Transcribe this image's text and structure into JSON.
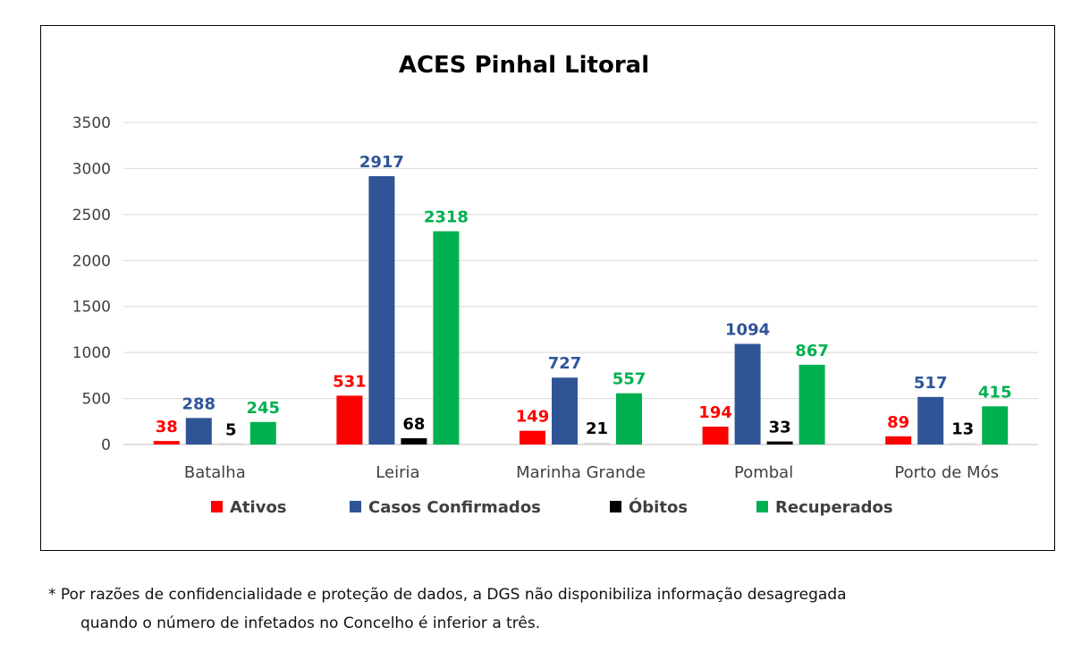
{
  "chart_data": {
    "type": "bar",
    "title": "ACES Pinhal Litoral",
    "categories": [
      "Batalha",
      "Leiria",
      "Marinha Grande",
      "Pombal",
      "Porto de Mós"
    ],
    "series": [
      {
        "name": "Ativos",
        "color": "#ff0000",
        "values": [
          38,
          531,
          149,
          194,
          89
        ]
      },
      {
        "name": "Casos Confirmados",
        "color": "#2f5597",
        "values": [
          288,
          2917,
          727,
          1094,
          517
        ]
      },
      {
        "name": "Óbitos",
        "color": "#000000",
        "values": [
          5,
          68,
          21,
          33,
          13
        ]
      },
      {
        "name": "Recuperados",
        "color": "#00b050",
        "values": [
          245,
          2318,
          557,
          867,
          415
        ]
      }
    ],
    "ylim": [
      0,
      3500
    ],
    "yticks": [
      0,
      500,
      1000,
      1500,
      2000,
      2500,
      3000,
      3500
    ],
    "grid": true,
    "legend": "bottom"
  },
  "footnote": {
    "line1": "* Por razões de confidencialidade e proteção de dados, a DGS não disponibiliza informação desagregada",
    "line2": "quando o número de infetados no Concelho é inferior a três."
  }
}
